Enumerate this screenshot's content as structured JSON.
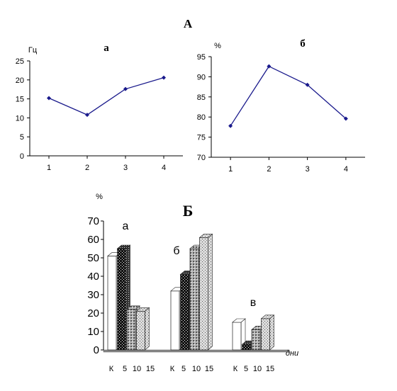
{
  "figure": {
    "title_A": "А",
    "title_B": "Б"
  },
  "chart_data": [
    {
      "type": "line",
      "panel": "А",
      "title": "а",
      "ylabel": "Гц",
      "x": [
        1,
        2,
        3,
        4
      ],
      "values": [
        15.2,
        10.8,
        17.6,
        20.6
      ],
      "ylim": [
        0,
        25
      ],
      "yticks": [
        0,
        5,
        10,
        15,
        20,
        25
      ],
      "color": "#1a1a8c",
      "grid": false
    },
    {
      "type": "line",
      "panel": "А",
      "title": "б",
      "ylabel": "%",
      "x": [
        1,
        2,
        3,
        4
      ],
      "values": [
        77.8,
        92.6,
        88.0,
        79.6
      ],
      "ylim": [
        70,
        95
      ],
      "yticks": [
        70,
        75,
        80,
        85,
        90,
        95
      ],
      "color": "#1a1a8c",
      "grid": false
    },
    {
      "type": "bar",
      "panel": "Б",
      "ylabel": "%",
      "xlabel": "дни",
      "ylim": [
        0,
        70
      ],
      "yticks": [
        0,
        10,
        20,
        30,
        40,
        50,
        60,
        70
      ],
      "groups": [
        {
          "label": "а",
          "categories": [
            "К",
            "5",
            "10",
            "15"
          ],
          "values": [
            51,
            55,
            22,
            21
          ]
        },
        {
          "label": "б",
          "categories": [
            "К",
            "5",
            "10",
            "15"
          ],
          "values": [
            32,
            41,
            55,
            61
          ]
        },
        {
          "label": "в",
          "categories": [
            "К",
            "5",
            "10",
            "15"
          ],
          "values": [
            15,
            3,
            11,
            17
          ]
        }
      ],
      "patterns": [
        "white",
        "black-dotted",
        "gray-dotted",
        "light-dotted"
      ],
      "grid": false
    }
  ]
}
